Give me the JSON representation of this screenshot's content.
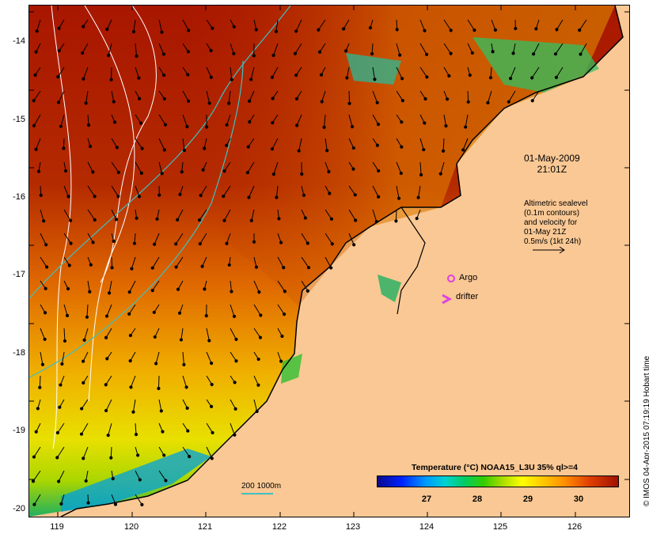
{
  "map": {
    "y_ticks": [
      "-14",
      "-15",
      "-16",
      "-17",
      "-18",
      "-19",
      "-20"
    ],
    "x_ticks": [
      "119",
      "120",
      "121",
      "122",
      "123",
      "124",
      "125",
      "126"
    ],
    "date_line1": "01-May-2009",
    "date_line2": "21:01Z",
    "alti_lines": [
      "Altimetric sealevel",
      "(0.1m contours)",
      "and velocity for",
      "01-May 21Z",
      "0.5m/s (1kt 24h)"
    ],
    "argo_label": "Argo",
    "drifter_label": "drifter",
    "depth_legend": "200  1000m",
    "colorbar_title": "Temperature (°C) NOAA15_L3U 35% ql>=4",
    "colorbar_ticks": [
      "27",
      "28",
      "29",
      "30"
    ],
    "credit": "© IMOS 04-Apr-2015 07:19:19 Hobart time"
  },
  "colors": {
    "land": "#fac894",
    "warm_sst": "#b41e00",
    "contour": "#ffffff",
    "bathy": "#40c0c0",
    "argo": "#e040e0"
  }
}
